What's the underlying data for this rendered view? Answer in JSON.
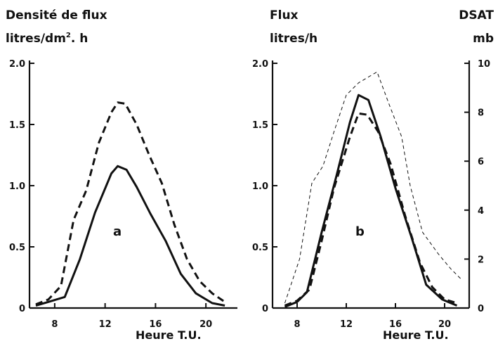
{
  "chart_data": [
    {
      "type": "line",
      "panel_label": "a",
      "ylabel_line1": "Densité de flux",
      "ylabel_line2_main": "litres/dm",
      "ylabel_line2_sup": "2",
      "ylabel_line2_tail": ". h",
      "xlabel": "Heure T.U.",
      "xlim": [
        6,
        22.5
      ],
      "ylim": [
        0,
        2.0
      ],
      "xticks": [
        8,
        12,
        16,
        20
      ],
      "xtick_labels": [
        "8",
        "12",
        "16",
        "20"
      ],
      "yticks": [
        0,
        0.5,
        1.0,
        1.5,
        2.0
      ],
      "ytick_labels": [
        "0",
        "0.5",
        "1.0",
        "1.5",
        "2.0"
      ],
      "series": [
        {
          "style": "solid",
          "x": [
            6.5,
            7.5,
            8.8,
            10,
            11.2,
            12.5,
            13,
            13.7,
            14.5,
            15.6,
            16.8,
            18,
            19.2,
            20.5,
            21.5
          ],
          "y": [
            0.02,
            0.05,
            0.09,
            0.4,
            0.78,
            1.1,
            1.16,
            1.13,
            0.99,
            0.77,
            0.55,
            0.28,
            0.12,
            0.04,
            0.02
          ]
        },
        {
          "style": "dashed",
          "x": [
            6.5,
            7.5,
            8.5,
            9.5,
            10.5,
            11.5,
            12.5,
            13,
            13.6,
            14.5,
            15.5,
            16.5,
            17.5,
            18.5,
            19.5,
            20.5,
            21.5
          ],
          "y": [
            0.03,
            0.07,
            0.18,
            0.72,
            0.96,
            1.35,
            1.6,
            1.68,
            1.67,
            1.5,
            1.25,
            1.02,
            0.68,
            0.4,
            0.22,
            0.12,
            0.05
          ]
        }
      ]
    },
    {
      "type": "line",
      "panel_label": "b",
      "ylabel_line1": "Flux",
      "ylabel_line2": "litres/h",
      "y2label_line1": "DSAT",
      "y2label_line2": "mb",
      "xlabel": "Heure T.U.",
      "xlim": [
        6,
        22
      ],
      "ylim": [
        0,
        2.0
      ],
      "y2lim": [
        0,
        10
      ],
      "xticks": [
        8,
        12,
        16,
        20
      ],
      "xtick_labels": [
        "8",
        "12",
        "16",
        "20"
      ],
      "yticks": [
        0,
        0.5,
        1.0,
        1.5,
        2.0
      ],
      "ytick_labels": [
        "0",
        "0.5",
        "1.0",
        "1.5",
        "2.0"
      ],
      "y2ticks": [
        0,
        2,
        4,
        6,
        8,
        10
      ],
      "y2tick_labels": [
        "0",
        "2",
        "4",
        "6",
        "8",
        "10"
      ],
      "series": [
        {
          "style": "solid",
          "axis": "left",
          "x": [
            7,
            8,
            8.8,
            10,
            11.2,
            12.3,
            13,
            13.8,
            14.8,
            16,
            17.3,
            18.5,
            19.8,
            21
          ],
          "y": [
            0.01,
            0.05,
            0.13,
            0.62,
            1.08,
            1.52,
            1.74,
            1.7,
            1.4,
            0.98,
            0.58,
            0.19,
            0.07,
            0.02
          ]
        },
        {
          "style": "dashed",
          "axis": "left",
          "x": [
            7,
            8,
            9,
            10,
            11,
            12.3,
            13,
            13.7,
            14.6,
            15.6,
            16.8,
            18,
            19,
            20,
            21
          ],
          "y": [
            0.02,
            0.06,
            0.15,
            0.55,
            0.98,
            1.4,
            1.59,
            1.58,
            1.44,
            1.18,
            0.75,
            0.37,
            0.17,
            0.07,
            0.04
          ]
        },
        {
          "style": "thin-dashed",
          "axis": "right",
          "x": [
            7,
            8.2,
            9.2,
            10.1,
            11,
            12,
            13,
            14.5,
            15.5,
            16.5,
            17.2,
            18.2,
            19.5,
            20.5,
            21.3
          ],
          "y": [
            0.2,
            2.0,
            5.1,
            5.8,
            7.2,
            8.7,
            9.2,
            9.65,
            8.3,
            7.0,
            5.0,
            3.1,
            2.2,
            1.6,
            1.2
          ]
        }
      ]
    }
  ]
}
